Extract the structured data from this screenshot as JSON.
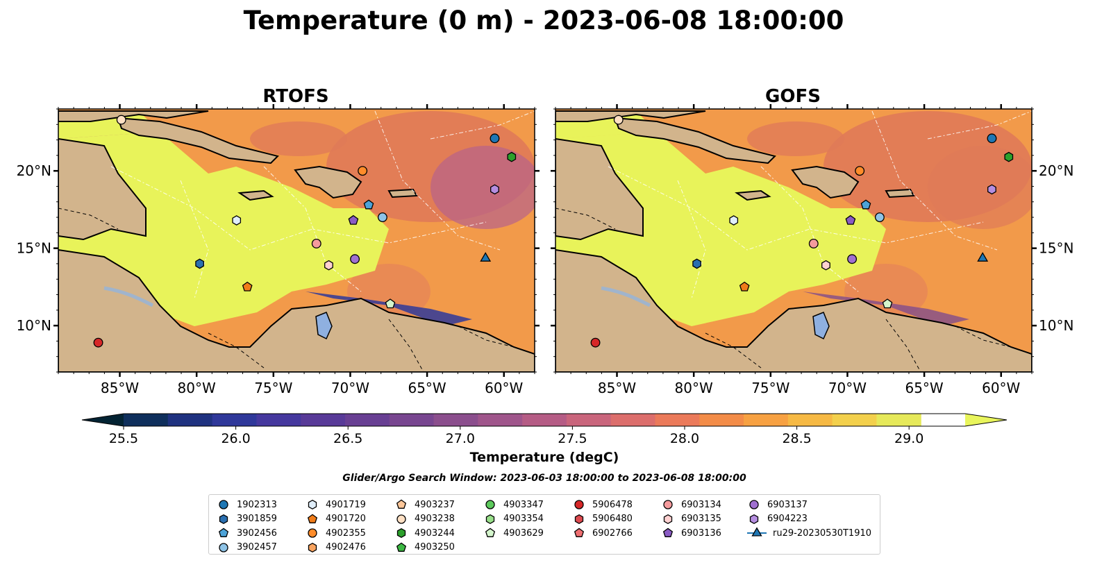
{
  "figure": {
    "title": "Temperature (0 m) - 2023-06-08 18:00:00",
    "panels": [
      {
        "id": "rtofs",
        "title": "RTOFS"
      },
      {
        "id": "gofs",
        "title": "GOFS"
      }
    ],
    "lon_ticks": [
      "85°W",
      "80°W",
      "75°W",
      "70°W",
      "65°W",
      "60°W"
    ],
    "lat_ticks": [
      "20°N",
      "15°N",
      "10°N"
    ],
    "colorbar": {
      "label": "Temperature (degC)",
      "ticks": [
        "25.5",
        "26.0",
        "26.5",
        "27.0",
        "27.5",
        "28.0",
        "28.5",
        "29.0"
      ],
      "levels": [
        25.5,
        25.75,
        26.0,
        26.25,
        26.5,
        26.75,
        27.0,
        27.25,
        27.5,
        27.75,
        28.0,
        28.25,
        28.5,
        28.75,
        29.0,
        29.25
      ],
      "colors": [
        "#032333",
        "#0f2f5c",
        "#1f3280",
        "#2f389a",
        "#45389e",
        "#583a98",
        "#683f93",
        "#784690",
        "#8b4e8d",
        "#9f558b",
        "#b55c85",
        "#c9657c",
        "#dc6e6c",
        "#eb7a5a",
        "#f38c48",
        "#f7a142",
        "#f6b944",
        "#f3d04c",
        "#e6e95a",
        "#e9f55c"
      ]
    },
    "search_window": "Glider/Argo Search Window: 2023-06-03 18:00:00 to 2023-06-08 18:00:00"
  },
  "legend": [
    {
      "label": "1902313",
      "marker": "circle",
      "color": "#1f77b4"
    },
    {
      "label": "3901859",
      "marker": "hexagon",
      "color": "#2a6fb0"
    },
    {
      "label": "3902456",
      "marker": "pentagon",
      "color": "#4da3d8"
    },
    {
      "label": "3902457",
      "marker": "circle",
      "color": "#8ec3e6"
    },
    {
      "label": "4901719",
      "marker": "hexagon",
      "color": "#e0eefa"
    },
    {
      "label": "4901720",
      "marker": "pentagon",
      "color": "#f07c1a"
    },
    {
      "label": "4902355",
      "marker": "circle",
      "color": "#ff8c2a"
    },
    {
      "label": "4902476",
      "marker": "hexagon",
      "color": "#f9a460"
    },
    {
      "label": "4903237",
      "marker": "pentagon",
      "color": "#fdc79a"
    },
    {
      "label": "4903238",
      "marker": "circle",
      "color": "#ffe0c4"
    },
    {
      "label": "4903244",
      "marker": "hexagon",
      "color": "#2ca02c"
    },
    {
      "label": "4903250",
      "marker": "pentagon",
      "color": "#3cb843"
    },
    {
      "label": "4903347",
      "marker": "circle",
      "color": "#5cc95c"
    },
    {
      "label": "4903354",
      "marker": "hexagon",
      "color": "#98df8a"
    },
    {
      "label": "4903629",
      "marker": "pentagon",
      "color": "#d4f5cc"
    },
    {
      "label": "5906478",
      "marker": "circle",
      "color": "#d62728"
    },
    {
      "label": "5906480",
      "marker": "hexagon",
      "color": "#dd4a4f"
    },
    {
      "label": "6902766",
      "marker": "pentagon",
      "color": "#ee6e70"
    },
    {
      "label": "6903134",
      "marker": "circle",
      "color": "#f59b9d"
    },
    {
      "label": "6903135",
      "marker": "hexagon",
      "color": "#ffd1d1"
    },
    {
      "label": "6903136",
      "marker": "pentagon",
      "color": "#8a5bc4"
    },
    {
      "label": "6903137",
      "marker": "circle",
      "color": "#a070d0"
    },
    {
      "label": "6904223",
      "marker": "hexagon",
      "color": "#b58ee0"
    },
    {
      "label": "ru29-20230530T1910",
      "marker": "triangle-line",
      "color": "#1f77b4"
    }
  ],
  "map_extent": {
    "lon": [
      -89,
      -58
    ],
    "lat": [
      7,
      24
    ]
  },
  "platforms": [
    {
      "id": "3901859",
      "lon": -79.8,
      "lat": 14.0,
      "marker": "hexagon",
      "color": "#2a6fb0"
    },
    {
      "id": "3902456",
      "lon": -68.8,
      "lat": 17.8,
      "marker": "pentagon",
      "color": "#4da3d8"
    },
    {
      "id": "3902457",
      "lon": -67.9,
      "lat": 17.0,
      "marker": "circle",
      "color": "#8ec3e6"
    },
    {
      "id": "4901719",
      "lon": -77.4,
      "lat": 16.8,
      "marker": "hexagon",
      "color": "#e0eefa"
    },
    {
      "id": "4901720",
      "lon": -76.7,
      "lat": 12.5,
      "marker": "pentagon",
      "color": "#f07c1a"
    },
    {
      "id": "4902355",
      "lon": -69.2,
      "lat": 20.0,
      "marker": "circle",
      "color": "#ff8c2a"
    },
    {
      "id": "4903238",
      "lon": -84.9,
      "lat": 23.3,
      "marker": "circle",
      "color": "#ffe0c4"
    },
    {
      "id": "4903244",
      "lon": -59.5,
      "lat": 20.9,
      "marker": "hexagon",
      "color": "#2ca02c"
    },
    {
      "id": "4903629",
      "lon": -67.4,
      "lat": 11.4,
      "marker": "pentagon",
      "color": "#d4f5cc"
    },
    {
      "id": "5906478",
      "lon": -86.4,
      "lat": 8.9,
      "marker": "circle",
      "color": "#d62728"
    },
    {
      "id": "6903134",
      "lon": -72.2,
      "lat": 15.3,
      "marker": "circle",
      "color": "#f59b9d"
    },
    {
      "id": "6903135",
      "lon": -71.4,
      "lat": 13.9,
      "marker": "hexagon",
      "color": "#ffd1d1"
    },
    {
      "id": "6903136",
      "lon": -69.8,
      "lat": 16.8,
      "marker": "pentagon",
      "color": "#8a5bc4"
    },
    {
      "id": "6903137",
      "lon": -69.7,
      "lat": 14.3,
      "marker": "circle",
      "color": "#a070d0"
    },
    {
      "id": "1902313",
      "lon": -60.6,
      "lat": 22.1,
      "marker": "circle",
      "color": "#1f77b4"
    },
    {
      "id": "6904223",
      "lon": -60.6,
      "lat": 18.8,
      "marker": "hexagon",
      "color": "#b58ee0"
    },
    {
      "id": "ru29-20230530T1910",
      "lon": -61.2,
      "lat": 14.4,
      "marker": "triangle",
      "color": "#1f77b4"
    }
  ]
}
